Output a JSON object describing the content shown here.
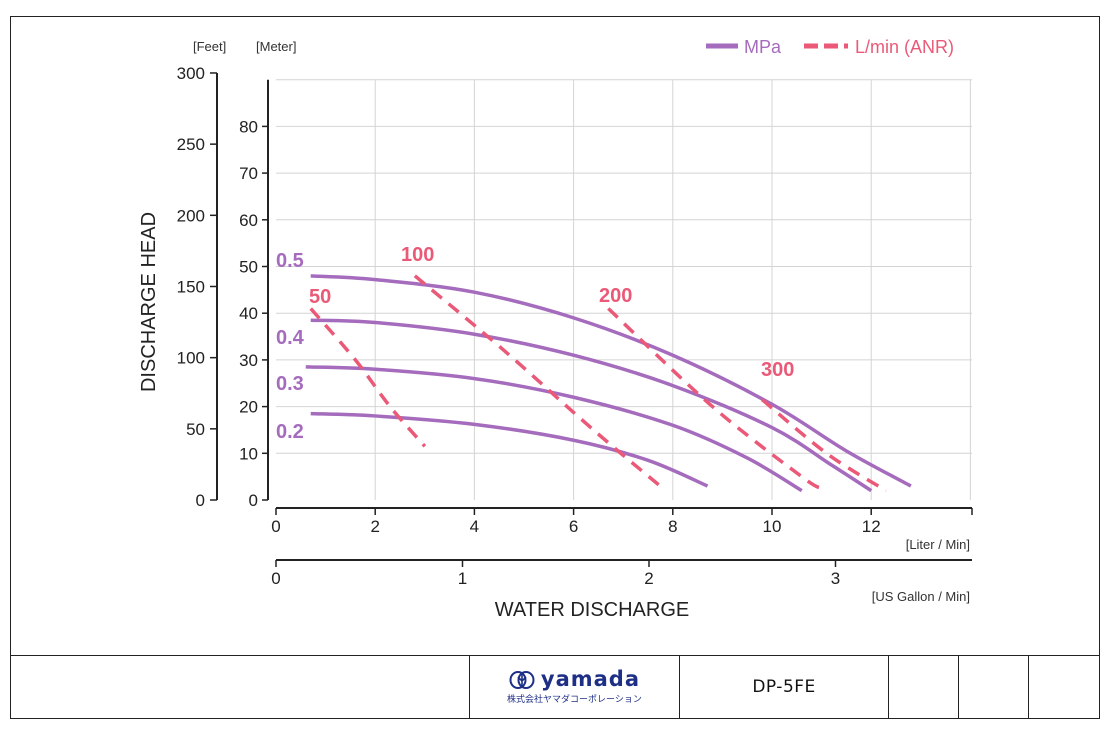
{
  "chart_data": {
    "type": "line",
    "title": "",
    "xlabel": "WATER DISCHARGE",
    "ylabel": "DISCHARGE HEAD",
    "x_unit_primary": "[Liter / Min]",
    "x_unit_secondary": "[US Gallon / Min]",
    "y_unit_feet": "[Feet]",
    "y_unit_meter": "[Meter]",
    "x_ticks_liter": [
      0,
      2,
      4,
      6,
      8,
      10,
      12
    ],
    "x_ticks_gallon": [
      0,
      1,
      2,
      3
    ],
    "y_ticks_meter": [
      0,
      10,
      20,
      30,
      40,
      50,
      60,
      70,
      80
    ],
    "y_ticks_feet": [
      0,
      50,
      100,
      150,
      200,
      250,
      300
    ],
    "xlim": [
      0,
      14
    ],
    "ylim_meter": [
      0,
      90
    ],
    "grid": true,
    "legend": [
      {
        "name": "MPa",
        "style": "solid",
        "color": "#a56bbd"
      },
      {
        "name": "L/min (ANR)",
        "style": "dashed",
        "color": "#ea5a78"
      }
    ],
    "series": [
      {
        "name": "0.5",
        "style": "solid",
        "color": "#a56bbd",
        "x": [
          0.7,
          2,
          4,
          6,
          8,
          10,
          11.5,
          12.8
        ],
        "y": [
          48,
          47.2,
          44.5,
          39,
          31,
          20.5,
          10.5,
          3
        ]
      },
      {
        "name": "0.4",
        "style": "solid",
        "color": "#a56bbd",
        "x": [
          0.7,
          2,
          4,
          6,
          8,
          10,
          11.2,
          12.0
        ],
        "y": [
          38.5,
          38,
          35.5,
          31,
          24.5,
          15.5,
          7.5,
          2
        ]
      },
      {
        "name": "0.3",
        "style": "solid",
        "color": "#a56bbd",
        "x": [
          0.6,
          2,
          4,
          6,
          8,
          9.5,
          10.6
        ],
        "y": [
          28.5,
          28,
          26,
          22,
          16,
          9,
          2
        ]
      },
      {
        "name": "0.2",
        "style": "solid",
        "color": "#a56bbd",
        "x": [
          0.7,
          2,
          4,
          6,
          7.5,
          8.7
        ],
        "y": [
          18.5,
          18,
          16.2,
          12.8,
          8.5,
          3
        ]
      },
      {
        "name": "50",
        "style": "dashed",
        "color": "#ea5a78",
        "x": [
          0.7,
          1.6,
          2.3,
          3.0
        ],
        "y": [
          41,
          30,
          20,
          11.5
        ]
      },
      {
        "name": "100",
        "style": "dashed",
        "color": "#ea5a78",
        "x": [
          2.8,
          4.6,
          6.4,
          7.8
        ],
        "y": [
          48,
          32,
          15,
          2.5
        ]
      },
      {
        "name": "200",
        "style": "dashed",
        "color": "#ea5a78",
        "x": [
          6.7,
          8.8,
          10.6,
          11.0
        ],
        "y": [
          41,
          20,
          5,
          2.5
        ]
      },
      {
        "name": "300",
        "style": "dashed",
        "color": "#ea5a78",
        "x": [
          9.8,
          11.1,
          12.3
        ],
        "y": [
          21.5,
          10,
          2
        ]
      }
    ]
  },
  "footer": {
    "brand": "yamada",
    "brand_subtitle": "株式会社ヤマダコーポレーション",
    "model": "DP-5FE"
  }
}
